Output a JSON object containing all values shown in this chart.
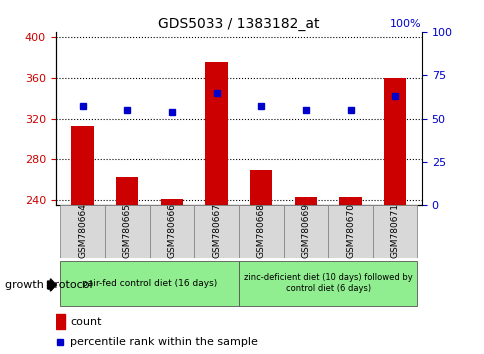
{
  "title": "GDS5033 / 1383182_at",
  "samples": [
    "GSM780664",
    "GSM780665",
    "GSM780666",
    "GSM780667",
    "GSM780668",
    "GSM780669",
    "GSM780670",
    "GSM780671"
  ],
  "counts": [
    313,
    263,
    241,
    375,
    270,
    243,
    243,
    360
  ],
  "percentile_ranks": [
    57,
    55,
    54,
    65,
    57,
    55,
    55,
    63
  ],
  "ylim_left": [
    235,
    405
  ],
  "ylim_right": [
    0,
    100
  ],
  "yticks_left": [
    240,
    280,
    320,
    360,
    400
  ],
  "yticks_right": [
    0,
    25,
    50,
    75,
    100
  ],
  "bar_color": "#cc0000",
  "dot_color": "#0000cc",
  "bar_width": 0.5,
  "group1_label": "pair-fed control diet (16 days)",
  "group2_label": "zinc-deficient diet (10 days) followed by\ncontrol diet (6 days)",
  "group1_indices": [
    0,
    1,
    2,
    3
  ],
  "group2_indices": [
    4,
    5,
    6,
    7
  ],
  "group_label_prefix": "growth protocol",
  "legend_count_label": "count",
  "legend_pct_label": "percentile rank within the sample",
  "group1_color": "#90EE90",
  "group2_color": "#90EE90",
  "tick_label_color_left": "#cc0000",
  "tick_label_color_right": "#0000cc",
  "grid_color": "#000000",
  "bg_color": "#ffffff",
  "label_box_color": "#d8d8d8",
  "pct_scale_factor": 1.65
}
